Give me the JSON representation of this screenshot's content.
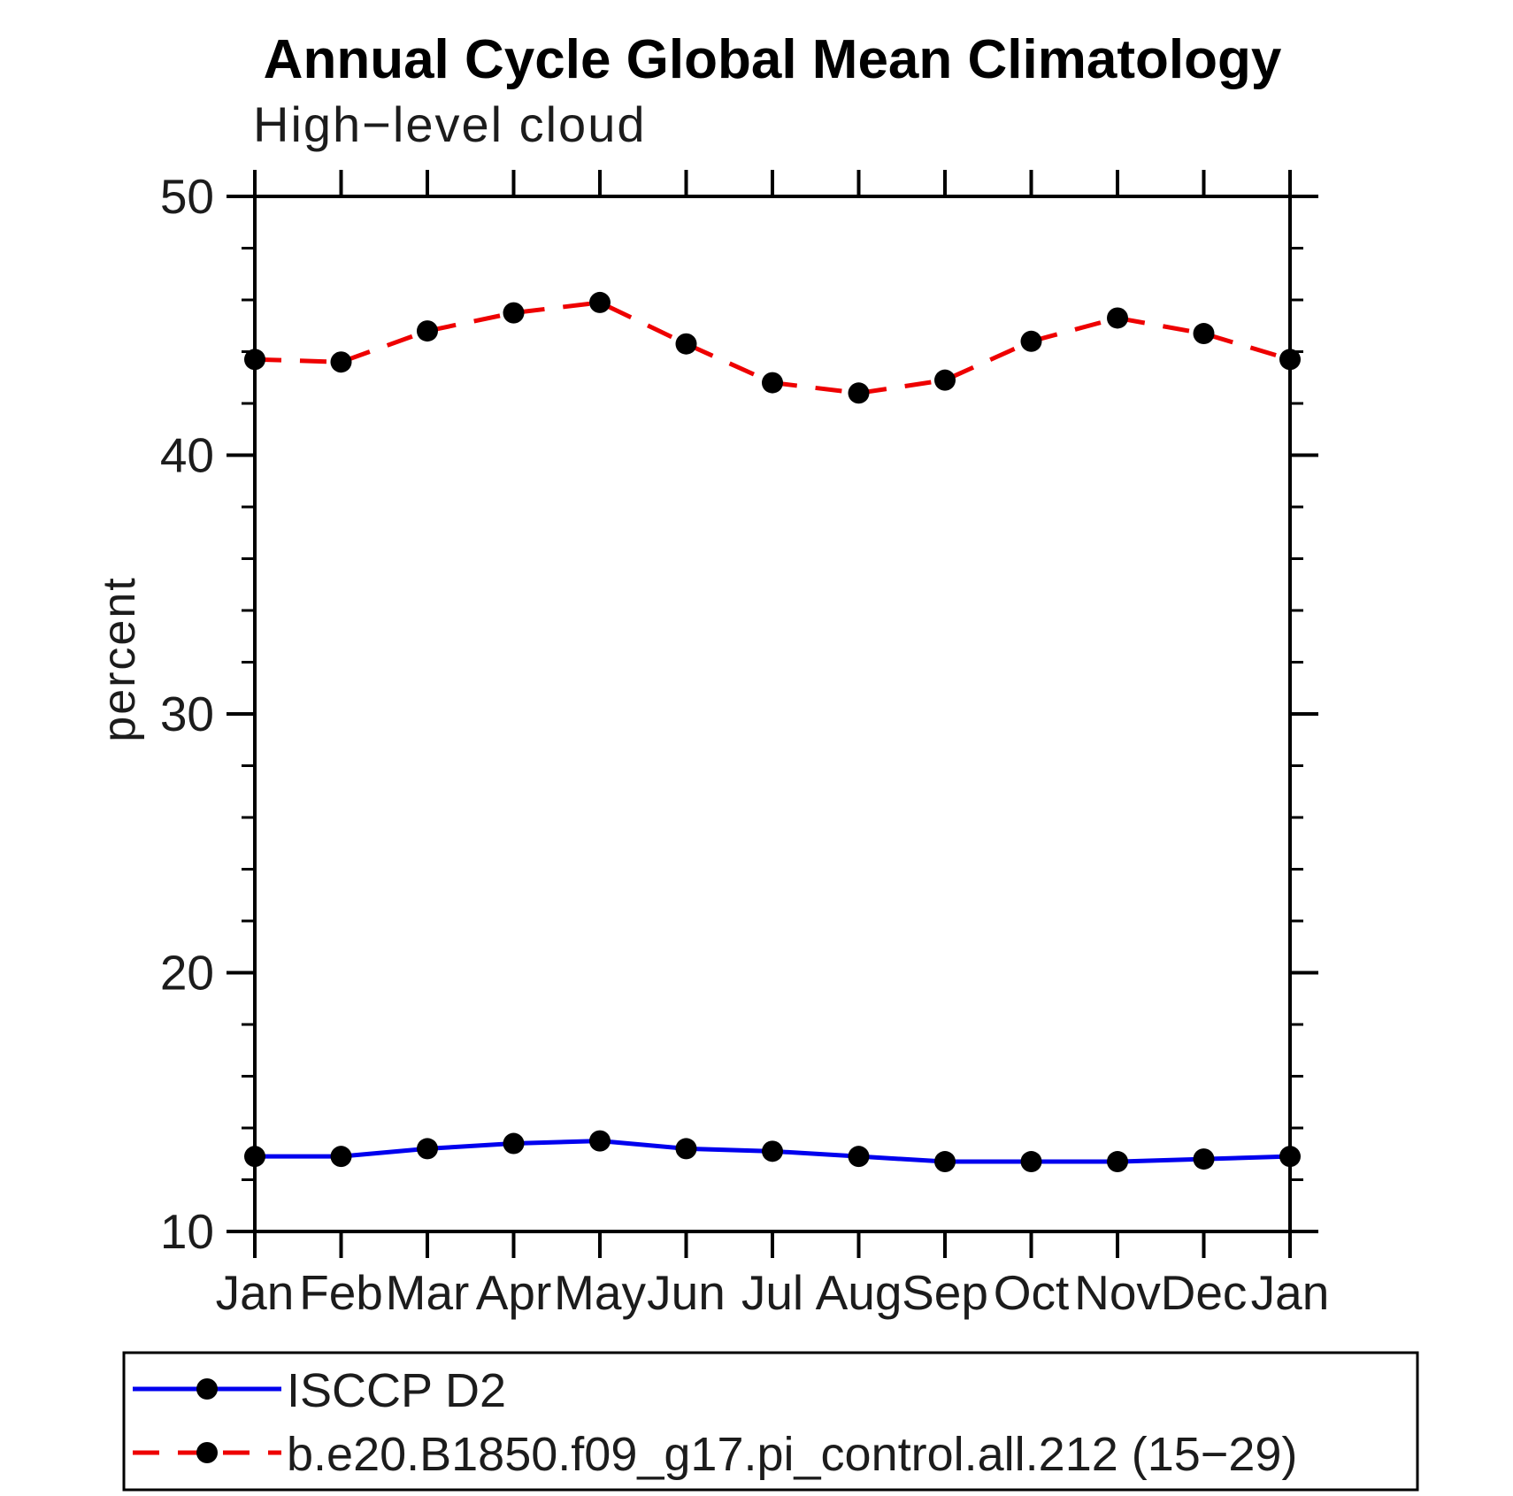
{
  "chart_data": {
    "type": "line",
    "title": "Annual Cycle Global Mean Climatology",
    "subtitle": "High−level cloud",
    "ylabel": "percent",
    "x_categories": [
      "Jan",
      "Feb",
      "Mar",
      "Apr",
      "May",
      "Jun",
      "Jul",
      "Aug",
      "Sep",
      "Oct",
      "Nov",
      "Dec",
      "Jan"
    ],
    "ylim": [
      10,
      50
    ],
    "y_major_ticks": [
      10,
      20,
      30,
      40,
      50
    ],
    "y_minor_step": 2,
    "grid": false,
    "legend_position": "bottom-left-box",
    "background_color": "#ffffff",
    "axis_color": "#000000",
    "marker_color": "#000000",
    "series": [
      {
        "name": "ISCCP D2",
        "color": "#0000ee",
        "line_style": "solid",
        "marker": "filled-circle",
        "values": [
          12.9,
          12.9,
          13.2,
          13.4,
          13.5,
          13.2,
          13.1,
          12.9,
          12.7,
          12.7,
          12.7,
          12.8,
          12.9
        ]
      },
      {
        "name": "b.e20.B1850.f09_g17.pi_control.all.212 (15−29)",
        "color": "#ee0000",
        "line_style": "dashed",
        "marker": "filled-circle",
        "values": [
          43.7,
          43.6,
          44.8,
          45.5,
          45.9,
          44.3,
          42.8,
          42.4,
          42.9,
          44.4,
          45.3,
          44.7,
          43.7
        ]
      }
    ]
  }
}
